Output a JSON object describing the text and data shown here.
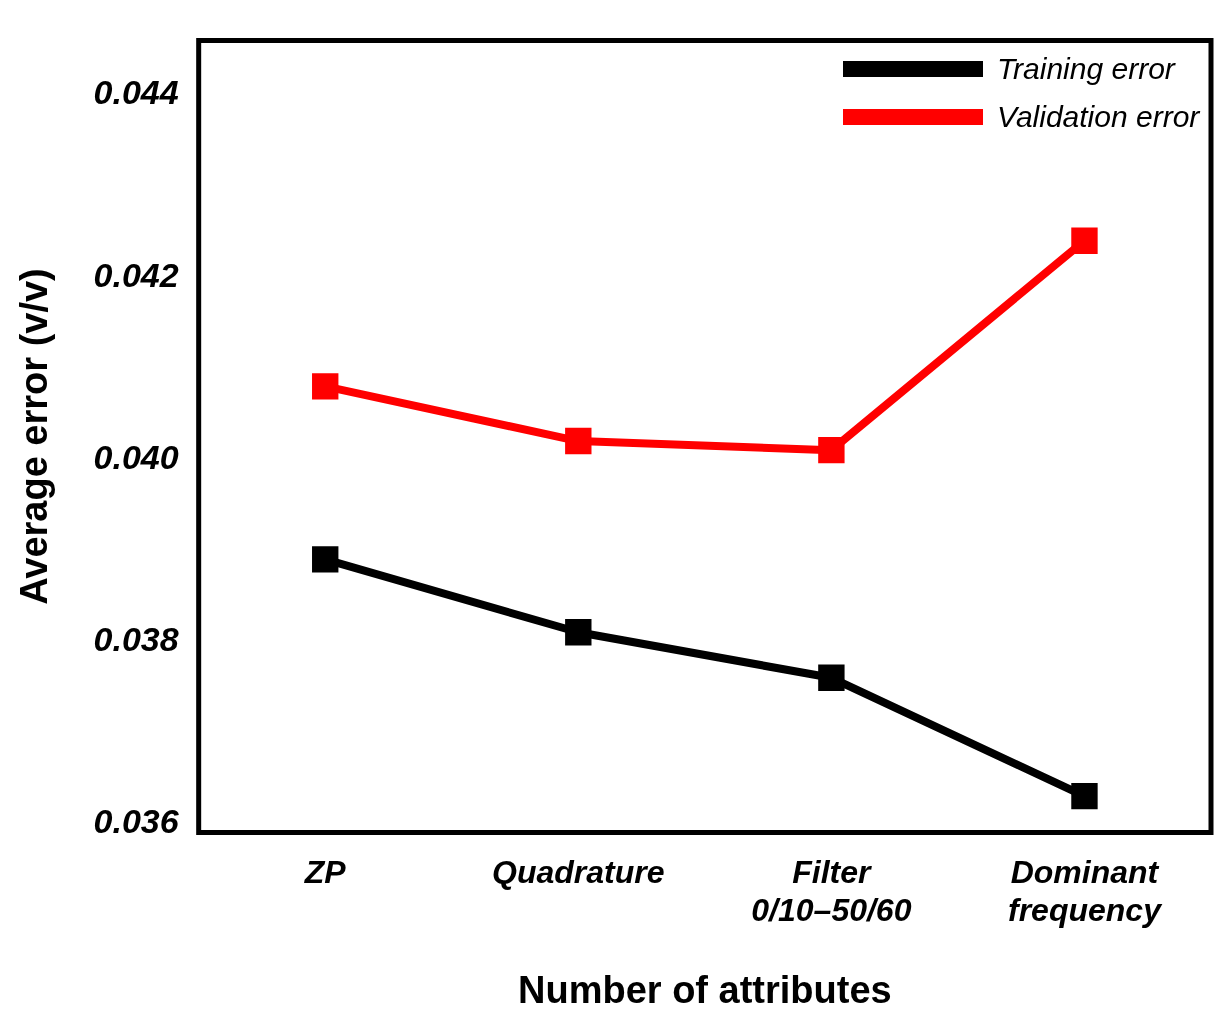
{
  "chart_data": {
    "type": "line",
    "xlabel": "Number of attributes",
    "ylabel": "Average error (v/v)",
    "categories": [
      "ZP",
      "Quadrature",
      "Filter\n0/10–50/60",
      "Dominant\nfrequency"
    ],
    "series": [
      {
        "name": "Training error",
        "color": "#000000",
        "values": [
          0.0389,
          0.0381,
          0.0376,
          0.0363
        ]
      },
      {
        "name": "Validation error",
        "color": "#ff0000",
        "values": [
          0.0408,
          0.0402,
          0.0401,
          0.0424
        ]
      }
    ],
    "ylim": [
      0.0359,
      0.0446
    ],
    "yticks": [
      0.036,
      0.038,
      {
        "value": 0.04,
        "label": "0.040"
      },
      0.042,
      0.044
    ],
    "grid": false,
    "legend": "top right",
    "marker": "square",
    "line_style": "solid"
  }
}
